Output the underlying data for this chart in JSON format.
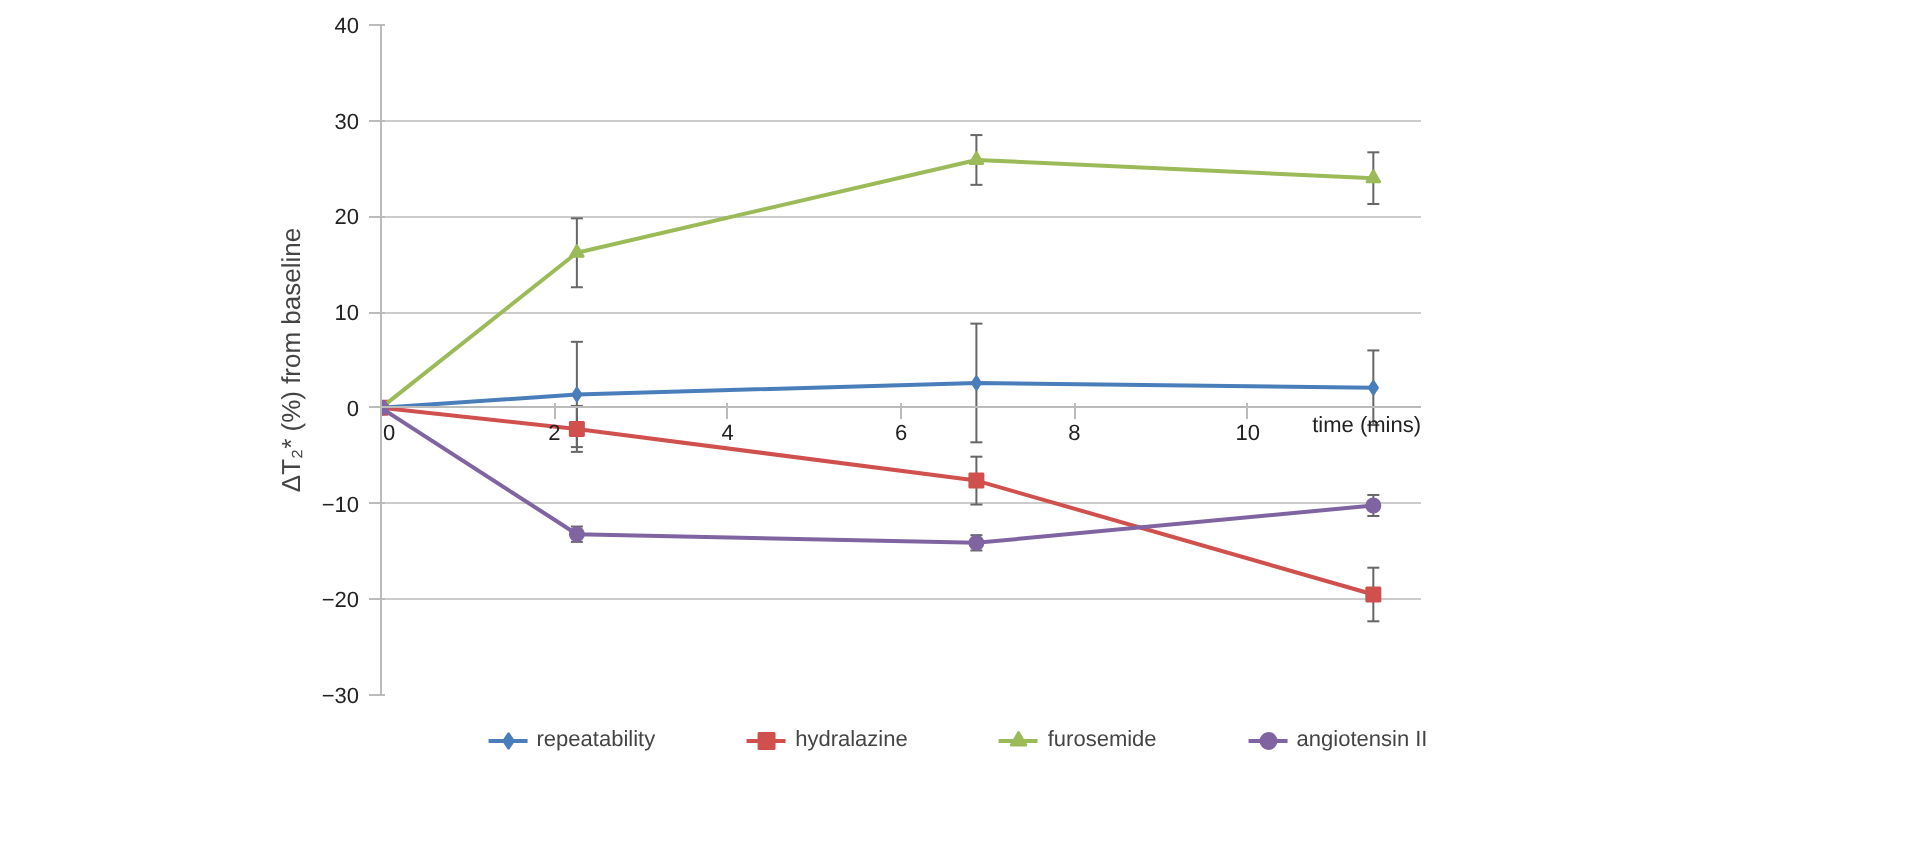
{
  "chart_data": {
    "type": "line",
    "ylabel": "ΔT₂* (%) from baseline",
    "xlabel": "time (mins)",
    "xlim": [
      0,
      12
    ],
    "xticks": [
      0,
      2,
      4,
      6,
      8,
      10
    ],
    "ylim": [
      -30,
      40
    ],
    "yticks": [
      -30,
      -20,
      -10,
      0,
      10,
      20,
      30,
      40
    ],
    "grid": "y",
    "legend": "bottom",
    "series": [
      {
        "name": "repeatability",
        "color": "#4a7ebb",
        "marker": "diamond",
        "x": [
          0,
          2.26,
          6.87,
          11.45
        ],
        "values": [
          0,
          1.4,
          2.6,
          2.1
        ],
        "errors": [
          null,
          5.5,
          6.2,
          3.9
        ]
      },
      {
        "name": "hydralazine",
        "color": "#d0504d",
        "marker": "square",
        "x": [
          0,
          2.26,
          6.87,
          11.45
        ],
        "values": [
          0,
          -2.2,
          -7.6,
          -19.5
        ],
        "errors": [
          null,
          2.4,
          2.5,
          2.8
        ]
      },
      {
        "name": "furosemide",
        "color": "#9bbb59",
        "marker": "triangle",
        "x": [
          0,
          2.26,
          6.87,
          11.45
        ],
        "values": [
          0,
          16.2,
          25.9,
          24.0
        ],
        "errors": [
          null,
          3.6,
          2.6,
          2.7
        ]
      },
      {
        "name": "angiotensin II",
        "color": "#8064a2",
        "marker": "circle",
        "x": [
          0,
          2.26,
          6.87,
          11.45
        ],
        "values": [
          0,
          -13.2,
          -14.1,
          -10.2
        ],
        "errors": [
          null,
          0.8,
          0.8,
          1.1
        ]
      }
    ]
  }
}
